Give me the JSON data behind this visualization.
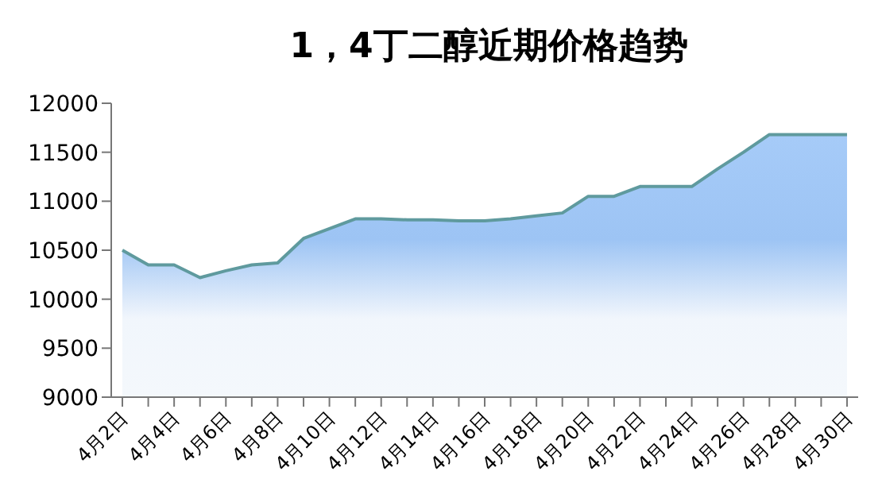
{
  "chart_data": {
    "type": "area",
    "title": "1，4丁二醇近期价格趋势",
    "categories": [
      "4月2日",
      null,
      "4月4日",
      null,
      "4月6日",
      null,
      "4月8日",
      null,
      "4月10日",
      null,
      "4月12日",
      null,
      "4月14日",
      null,
      "4月16日",
      null,
      "4月18日",
      null,
      "4月20日",
      null,
      "4月22日",
      null,
      "4月24日",
      null,
      "4月26日",
      null,
      "4月28日",
      null,
      "4月30日"
    ],
    "series": [
      {
        "color": "#5f9a9e",
        "values": [
          10500,
          10350,
          10350,
          10220,
          10290,
          10350,
          10370,
          10620,
          10720,
          10820,
          10820,
          10810,
          10810,
          10800,
          10800,
          10820,
          10850,
          10880,
          11050,
          11050,
          11150,
          11150,
          11150,
          11330,
          11500,
          11680,
          11680,
          11680,
          11680
        ]
      }
    ],
    "ylim": [
      9000,
      12000
    ],
    "yticks": [
      9000,
      9500,
      10000,
      10500,
      11000,
      11500,
      12000
    ],
    "grid": false,
    "legend": false
  }
}
